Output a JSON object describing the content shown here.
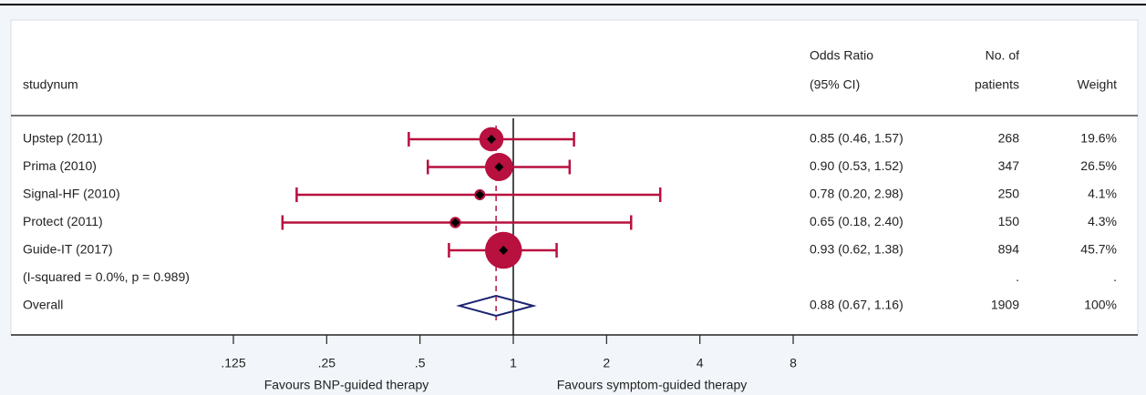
{
  "chart_data": {
    "type": "forest",
    "columns": {
      "study": "studynum",
      "or": [
        "Odds Ratio",
        "(95% CI)"
      ],
      "patients": [
        "No. of",
        "patients"
      ],
      "weight": "Weight"
    },
    "studies": [
      {
        "name": "Upstep (2011)",
        "or": 0.85,
        "lo": 0.46,
        "hi": 1.57,
        "ci_label": "0.85 (0.46, 1.57)",
        "patients": 268,
        "weight": 19.6,
        "weight_label": "19.6%"
      },
      {
        "name": "Prima (2010)",
        "or": 0.9,
        "lo": 0.53,
        "hi": 1.52,
        "ci_label": "0.90 (0.53, 1.52)",
        "patients": 347,
        "weight": 26.5,
        "weight_label": "26.5%"
      },
      {
        "name": "Signal-HF (2010)",
        "or": 0.78,
        "lo": 0.2,
        "hi": 2.98,
        "ci_label": "0.78 (0.20, 2.98)",
        "patients": 250,
        "weight": 4.1,
        "weight_label": "4.1%"
      },
      {
        "name": "Protect (2011)",
        "or": 0.65,
        "lo": 0.18,
        "hi": 2.4,
        "ci_label": "0.65 (0.18, 2.40)",
        "patients": 150,
        "weight": 4.3,
        "weight_label": "4.3%"
      },
      {
        "name": "Guide-IT (2017)",
        "or": 0.93,
        "lo": 0.62,
        "hi": 1.38,
        "ci_label": "0.93 (0.62, 1.38)",
        "patients": 894,
        "weight": 45.7,
        "weight_label": "45.7%"
      }
    ],
    "heterogeneity": {
      "label": "(I-squared = 0.0%, p = 0.989)",
      "patients": ".",
      "weight": "."
    },
    "overall": {
      "name": "Overall",
      "or": 0.88,
      "lo": 0.67,
      "hi": 1.16,
      "ci_label": "0.88 (0.67, 1.16)",
      "patients": 1909,
      "weight": 100,
      "weight_label": "100%"
    },
    "xlim": [
      0.125,
      8
    ],
    "log_scale": true,
    "xticks": [
      {
        "value": 0.125,
        "label": ".125"
      },
      {
        "value": 0.25,
        "label": ".25"
      },
      {
        "value": 0.5,
        "label": ".5"
      },
      1,
      2,
      4,
      8
    ],
    "null_value": 1,
    "x_labels": [
      "Favours BNP-guided therapy",
      "Favours symptom-guided therapy"
    ],
    "marker_color": "#b8103f",
    "diamond_color": "#1b2370"
  }
}
